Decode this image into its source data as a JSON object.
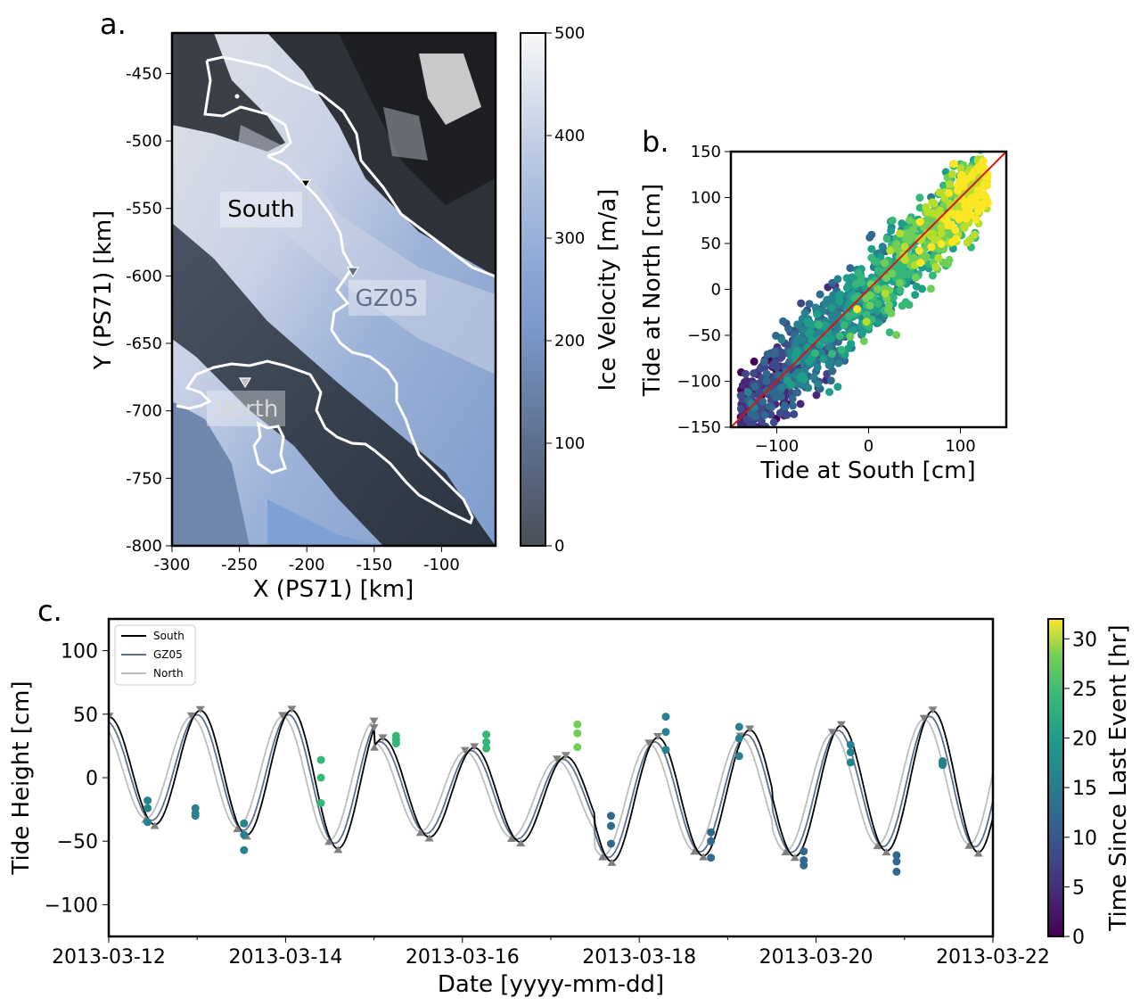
{
  "colors": {
    "south": "#000000",
    "gz05": "#5f7089",
    "north": "#bdbdbd",
    "one_to_one": "#e01010",
    "marker": "#808080"
  },
  "chart_data": [
    {
      "panel_label": "a.",
      "type": "heatmap",
      "xlabel": "X (PS71) [km]",
      "ylabel": "Y (PS71) [km]",
      "xlim": [
        -300,
        -60
      ],
      "ylim": [
        -800,
        -420
      ],
      "xticks": [
        "-300",
        "-250",
        "-200",
        "-150",
        "-100"
      ],
      "yticks": [
        "-450",
        "-500",
        "-550",
        "-600",
        "-650",
        "-700",
        "-750",
        "-800"
      ],
      "station_labels": [
        "South",
        "GZ05",
        "North"
      ],
      "colorbar": {
        "label": "Ice Velocity [m/a]",
        "range": [
          0,
          500
        ],
        "ticks": [
          "0",
          "100",
          "200",
          "300",
          "400",
          "500"
        ]
      }
    },
    {
      "panel_label": "b.",
      "type": "scatter",
      "xlabel": "Tide at South [cm]",
      "ylabel": "Tide at North [cm]",
      "xlim": [
        -150,
        150
      ],
      "ylim": [
        -150,
        150
      ],
      "xticks": [
        "−100",
        "0",
        "100"
      ],
      "yticks": [
        "−150",
        "−100",
        "−50",
        "0",
        "50",
        "100",
        "150"
      ],
      "reference_line": "1:1"
    },
    {
      "panel_label": "c.",
      "type": "line",
      "xlabel": "Date [yyyy-mm-dd]",
      "ylabel": "Tide Height [cm]",
      "xlim": [
        "2013-03-12",
        "2013-03-22"
      ],
      "ylim": [
        -125,
        125
      ],
      "xticks": [
        "2013-03-12",
        "2013-03-14",
        "2013-03-16",
        "2013-03-18",
        "2013-03-20",
        "2013-03-22"
      ],
      "yticks": [
        "−100",
        "−50",
        "0",
        "50",
        "100"
      ],
      "legend": [
        "South",
        "GZ05",
        "North"
      ],
      "legend_position": "top-left",
      "colorbar": {
        "label": "Time Since Last Event [hr]",
        "range": [
          0,
          32
        ],
        "ticks": [
          "0",
          "5",
          "10",
          "15",
          "20",
          "25",
          "30"
        ]
      },
      "event_points": [
        {
          "day": 0.44,
          "values": [
            -18,
            -24,
            -35
          ],
          "hours": 14
        },
        {
          "day": 0.98,
          "values": [
            -24,
            -28,
            -30
          ],
          "hours": 15
        },
        {
          "day": 1.53,
          "values": [
            -36,
            -45,
            -57
          ],
          "hours": 13
        },
        {
          "day": 2.4,
          "values": [
            14,
            0,
            -20
          ],
          "hours": 22
        },
        {
          "day": 3.25,
          "values": [
            33,
            30,
            27
          ],
          "hours": 21
        },
        {
          "day": 4.27,
          "values": [
            34,
            28,
            23
          ],
          "hours": 23
        },
        {
          "day": 5.3,
          "values": [
            42,
            35,
            24
          ],
          "hours": 24
        },
        {
          "day": 5.68,
          "values": [
            -30,
            -38,
            -52
          ],
          "hours": 11
        },
        {
          "day": 6.3,
          "values": [
            48,
            36,
            22
          ],
          "hours": 15
        },
        {
          "day": 6.81,
          "values": [
            -43,
            -50,
            -63
          ],
          "hours": 12
        },
        {
          "day": 7.13,
          "values": [
            40,
            31,
            17
          ],
          "hours": 15
        },
        {
          "day": 7.86,
          "values": [
            -58,
            -65,
            -69
          ],
          "hours": 12
        },
        {
          "day": 8.39,
          "values": [
            26,
            20,
            12
          ],
          "hours": 15
        },
        {
          "day": 8.91,
          "values": [
            -61,
            -66,
            -74
          ],
          "hours": 12
        },
        {
          "day": 9.43,
          "values": [
            13,
            11,
            10
          ],
          "hours": 14
        }
      ]
    }
  ]
}
